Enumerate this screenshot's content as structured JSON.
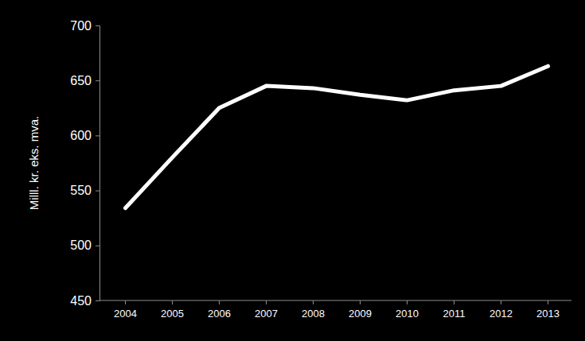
{
  "chart_data": {
    "type": "line",
    "y_label": "Milll. kr. eks. mva.",
    "categories": [
      "2004",
      "2005",
      "2006",
      "2007",
      "2008",
      "2009",
      "2010",
      "2011",
      "2012",
      "2013"
    ],
    "values": [
      534,
      580,
      625,
      645,
      643,
      637,
      632,
      641,
      645,
      663
    ],
    "color": "#ffffff",
    "ylim": [
      450,
      700
    ],
    "yticks": [
      450,
      500,
      550,
      600,
      650,
      700
    ],
    "grid": false
  }
}
